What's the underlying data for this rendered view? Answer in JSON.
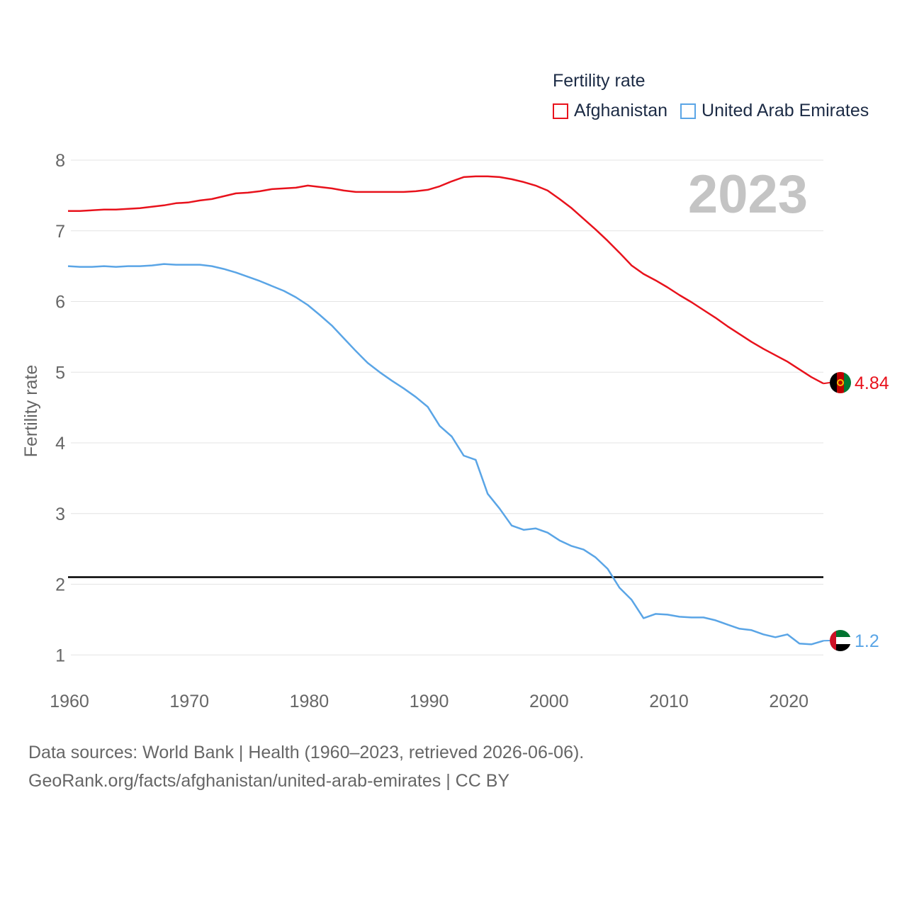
{
  "chart_data": {
    "type": "line",
    "title": "2023",
    "ylabel": "Fertility rate",
    "xlabel": "",
    "xlim": [
      1960,
      2023
    ],
    "ylim": [
      0.5,
      8.1
    ],
    "yticks": [
      1,
      2,
      3,
      4,
      5,
      6,
      7,
      8
    ],
    "xticks": [
      1960,
      1970,
      1980,
      1990,
      2000,
      2010,
      2020
    ],
    "reference_line": {
      "y": 2.1,
      "color": "#000000"
    },
    "legend": {
      "title": "Fertility rate",
      "position": "top-right"
    },
    "series": [
      {
        "name": "Afghanistan",
        "color": "#e8121c",
        "end_label": "4.84",
        "flag_icon": "afghanistan-flag-icon",
        "x": [
          1960,
          1961,
          1962,
          1963,
          1964,
          1965,
          1966,
          1967,
          1968,
          1969,
          1970,
          1971,
          1972,
          1973,
          1974,
          1975,
          1976,
          1977,
          1978,
          1979,
          1980,
          1981,
          1982,
          1983,
          1984,
          1985,
          1986,
          1987,
          1988,
          1989,
          1990,
          1991,
          1992,
          1993,
          1994,
          1995,
          1996,
          1997,
          1998,
          1999,
          2000,
          2001,
          2002,
          2003,
          2004,
          2005,
          2006,
          2007,
          2008,
          2009,
          2010,
          2011,
          2012,
          2013,
          2014,
          2015,
          2016,
          2017,
          2018,
          2019,
          2020,
          2021,
          2022,
          2023
        ],
        "values": [
          7.28,
          7.28,
          7.29,
          7.3,
          7.3,
          7.31,
          7.32,
          7.34,
          7.36,
          7.39,
          7.4,
          7.43,
          7.45,
          7.49,
          7.53,
          7.54,
          7.56,
          7.59,
          7.6,
          7.61,
          7.64,
          7.62,
          7.6,
          7.57,
          7.55,
          7.55,
          7.55,
          7.55,
          7.55,
          7.56,
          7.58,
          7.63,
          7.7,
          7.76,
          7.77,
          7.77,
          7.76,
          7.73,
          7.69,
          7.64,
          7.57,
          7.45,
          7.32,
          7.17,
          7.02,
          6.86,
          6.69,
          6.51,
          6.39,
          6.3,
          6.2,
          6.09,
          5.99,
          5.88,
          5.77,
          5.65,
          5.54,
          5.43,
          5.33,
          5.24,
          5.15,
          5.04,
          4.93,
          4.84
        ]
      },
      {
        "name": "United Arab Emirates",
        "color": "#5aa5e6",
        "end_label": "1.2",
        "flag_icon": "uae-flag-icon",
        "x": [
          1960,
          1961,
          1962,
          1963,
          1964,
          1965,
          1966,
          1967,
          1968,
          1969,
          1970,
          1971,
          1972,
          1973,
          1974,
          1975,
          1976,
          1977,
          1978,
          1979,
          1980,
          1981,
          1982,
          1983,
          1984,
          1985,
          1986,
          1987,
          1988,
          1989,
          1990,
          1991,
          1992,
          1993,
          1994,
          1995,
          1996,
          1997,
          1998,
          1999,
          2000,
          2001,
          2002,
          2003,
          2004,
          2005,
          2006,
          2007,
          2008,
          2009,
          2010,
          2011,
          2012,
          2013,
          2014,
          2015,
          2016,
          2017,
          2018,
          2019,
          2020,
          2021,
          2022,
          2023
        ],
        "values": [
          6.5,
          6.49,
          6.49,
          6.5,
          6.49,
          6.5,
          6.5,
          6.51,
          6.53,
          6.52,
          6.52,
          6.52,
          6.5,
          6.46,
          6.41,
          6.35,
          6.29,
          6.22,
          6.15,
          6.06,
          5.95,
          5.81,
          5.66,
          5.48,
          5.3,
          5.13,
          5.0,
          4.88,
          4.77,
          4.65,
          4.51,
          4.24,
          4.09,
          3.82,
          3.76,
          3.28,
          3.07,
          2.83,
          2.77,
          2.79,
          2.73,
          2.62,
          2.54,
          2.49,
          2.38,
          2.22,
          1.95,
          1.78,
          1.52,
          1.58,
          1.57,
          1.54,
          1.53,
          1.53,
          1.49,
          1.43,
          1.37,
          1.35,
          1.29,
          1.25,
          1.29,
          1.16,
          1.15,
          1.2
        ]
      }
    ]
  },
  "legend": {
    "title": "Fertility rate",
    "items": [
      {
        "label": "Afghanistan",
        "color": "#e8121c"
      },
      {
        "label": "United Arab Emirates",
        "color": "#5aa5e6"
      }
    ]
  },
  "footer": {
    "line1": "Data sources: World Bank | Health (1960–2023, retrieved 2026-06-06).",
    "line2": "GeoRank.org/facts/afghanistan/united-arab-emirates | CC BY"
  }
}
